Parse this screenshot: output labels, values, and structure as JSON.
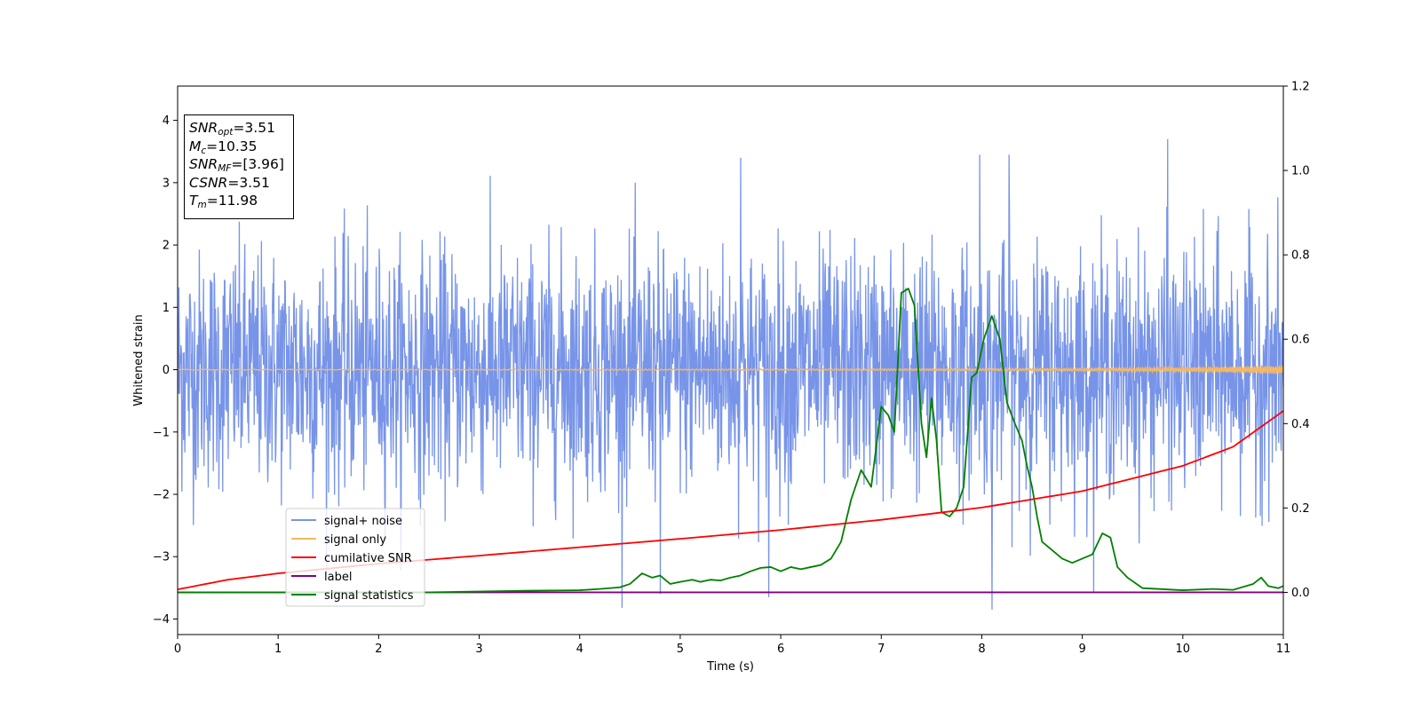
{
  "chart_data": {
    "type": "line",
    "xlabel": "Time (s)",
    "ylabel": "Whitened strain",
    "xlim": [
      0,
      11
    ],
    "ylim": [
      -4.25,
      4.55
    ],
    "y2lim": [
      -0.1,
      1.2
    ],
    "x_ticks": [
      "0",
      "1",
      "2",
      "3",
      "4",
      "5",
      "6",
      "7",
      "8",
      "9",
      "10",
      "11"
    ],
    "y_ticks": [
      "−4",
      "−3",
      "−2",
      "−1",
      "0",
      "1",
      "2",
      "3",
      "4"
    ],
    "y2_ticks": [
      "0.0",
      "0.2",
      "0.4",
      "0.6",
      "0.8",
      "1.0",
      "1.2"
    ],
    "grid": false,
    "legend_position": "lower-left",
    "annotation": {
      "snr_opt": {
        "symbol": "SNR",
        "sub": "opt",
        "value": "=3.51"
      },
      "mc": {
        "symbol": "M",
        "sub": "c",
        "value": "=10.35"
      },
      "snr_mf": {
        "symbol": "SNR",
        "sub": "MF",
        "value": "=[3.96]"
      },
      "csnr": {
        "symbol": "CSNR",
        "value": "=3.51"
      },
      "tm": {
        "symbol": "T",
        "sub": "m",
        "value": "=11.98"
      }
    },
    "series": [
      {
        "name": "signal+ noise",
        "color": "#7794e8",
        "axis": "left",
        "kind": "noise",
        "mean": 0,
        "std": 1.0,
        "notable_peaks": [
          {
            "x": 5.6,
            "y": 3.4
          },
          {
            "x": 7.98,
            "y": 3.45
          },
          {
            "x": 8.27,
            "y": 3.45
          },
          {
            "x": 9.85,
            "y": 3.7
          },
          {
            "x": 4.8,
            "y": -3.6
          },
          {
            "x": 5.88,
            "y": -3.65
          },
          {
            "x": 8.1,
            "y": -3.85
          }
        ]
      },
      {
        "name": "signal only",
        "color": "#f5b863",
        "axis": "left",
        "x": [
          0,
          3,
          6,
          8,
          9,
          10,
          10.5,
          11
        ],
        "amplitude": [
          0.004,
          0.006,
          0.01,
          0.016,
          0.022,
          0.035,
          0.05,
          0.07
        ]
      },
      {
        "name": "cumilative SNR",
        "color": "#ff0000",
        "axis": "right",
        "x": [
          0,
          0.5,
          1,
          2,
          3,
          4,
          5,
          6,
          7,
          8,
          9,
          10,
          10.5,
          11
        ],
        "values": [
          0.007,
          0.03,
          0.045,
          0.068,
          0.087,
          0.107,
          0.127,
          0.148,
          0.172,
          0.201,
          0.24,
          0.3,
          0.345,
          0.43
        ]
      },
      {
        "name": "label",
        "color": "#800080",
        "axis": "right",
        "x": [
          0,
          11
        ],
        "values": [
          0,
          0
        ]
      },
      {
        "name": "signal statistics",
        "color": "#008000",
        "axis": "right",
        "x": [
          0,
          2.5,
          3.5,
          4,
          4.2,
          4.4,
          4.5,
          4.62,
          4.72,
          4.8,
          4.9,
          5.0,
          5.12,
          5.2,
          5.3,
          5.4,
          5.5,
          5.6,
          5.7,
          5.8,
          5.9,
          6.0,
          6.1,
          6.2,
          6.3,
          6.4,
          6.5,
          6.6,
          6.7,
          6.8,
          6.9,
          7.0,
          7.07,
          7.13,
          7.2,
          7.27,
          7.33,
          7.4,
          7.45,
          7.5,
          7.55,
          7.6,
          7.68,
          7.75,
          7.82,
          7.9,
          7.95,
          8.02,
          8.1,
          8.18,
          8.25,
          8.33,
          8.4,
          8.45,
          8.5,
          8.55,
          8.6,
          8.7,
          8.8,
          8.9,
          9.0,
          9.1,
          9.2,
          9.28,
          9.35,
          9.45,
          9.6,
          10.0,
          10.3,
          10.5,
          10.7,
          10.78,
          10.85,
          10.95,
          11.0
        ],
        "values": [
          0.0,
          0.0,
          0.004,
          0.005,
          0.008,
          0.012,
          0.02,
          0.045,
          0.035,
          0.04,
          0.02,
          0.025,
          0.03,
          0.025,
          0.03,
          0.028,
          0.035,
          0.04,
          0.05,
          0.058,
          0.06,
          0.05,
          0.06,
          0.055,
          0.06,
          0.065,
          0.08,
          0.12,
          0.22,
          0.29,
          0.25,
          0.44,
          0.42,
          0.38,
          0.71,
          0.72,
          0.68,
          0.4,
          0.32,
          0.46,
          0.36,
          0.19,
          0.18,
          0.2,
          0.25,
          0.51,
          0.52,
          0.6,
          0.655,
          0.6,
          0.45,
          0.4,
          0.36,
          0.3,
          0.25,
          0.18,
          0.12,
          0.1,
          0.08,
          0.07,
          0.08,
          0.09,
          0.14,
          0.13,
          0.06,
          0.035,
          0.01,
          0.005,
          0.008,
          0.006,
          0.02,
          0.035,
          0.015,
          0.01,
          0.015
        ]
      }
    ]
  }
}
